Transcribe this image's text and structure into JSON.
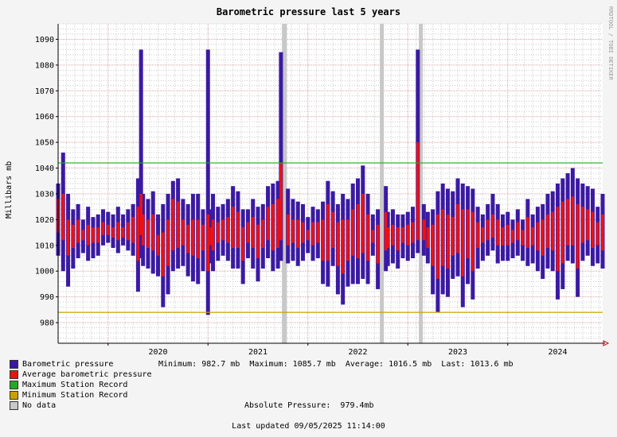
{
  "title": "Barometric pressure last 5 years",
  "side_text": "RRDTOOL / TOBI OETIKER",
  "stats": {
    "minimum_label": "Minimum:",
    "minimum": "982.7 mb",
    "maximum_label": "Maximum:",
    "maximum": "1085.7 mb",
    "average_label": "Average:",
    "average": "1016.5 mb",
    "last_label": "Last:",
    "last": "1013.6 mb"
  },
  "absolute_pressure_label": "Absolute Pressure:",
  "absolute_pressure": "979.4mb",
  "last_updated": "Last updated 09/05/2025 11:14:00",
  "legend": [
    {
      "label": "Barometric pressure",
      "color": "#3a1aa3"
    },
    {
      "label": "Average barometric pressure",
      "color": "#ee1111"
    },
    {
      "label": "Maximum Station Record",
      "color": "#22aa22"
    },
    {
      "label": "Minimum Station Record",
      "color": "#c8a000"
    },
    {
      "label": "No data",
      "color": "#c8c8c8"
    }
  ],
  "chart_data": {
    "type": "area",
    "title": "Barometric pressure last 5 years",
    "ylabel": "Millibars   mb",
    "ylim": [
      972,
      1096
    ],
    "yticks": [
      980,
      990,
      1000,
      1010,
      1020,
      1030,
      1040,
      1050,
      1060,
      1070,
      1080,
      1090
    ],
    "xlim": [
      2019.5,
      2024.95
    ],
    "xticks": [
      "2020",
      "2021",
      "2022",
      "2023",
      "2024"
    ],
    "grid": true,
    "max_station_record": 1042,
    "min_station_record": 984,
    "no_data_periods": [
      [
        2021.74,
        2021.79
      ],
      [
        2022.72,
        2022.76
      ],
      [
        2023.11,
        2023.15
      ]
    ],
    "series": [
      {
        "name": "Barometric pressure",
        "color": "#3a1aa3",
        "x": [
          2019.5,
          2019.55,
          2019.6,
          2019.65,
          2019.7,
          2019.75,
          2019.8,
          2019.85,
          2019.9,
          2019.95,
          2020.0,
          2020.05,
          2020.1,
          2020.15,
          2020.2,
          2020.25,
          2020.3,
          2020.33,
          2020.35,
          2020.4,
          2020.45,
          2020.5,
          2020.55,
          2020.6,
          2020.65,
          2020.7,
          2020.75,
          2020.8,
          2020.85,
          2020.9,
          2020.95,
          2021.0,
          2021.03,
          2021.05,
          2021.1,
          2021.15,
          2021.2,
          2021.25,
          2021.3,
          2021.35,
          2021.4,
          2021.45,
          2021.5,
          2021.55,
          2021.6,
          2021.65,
          2021.7,
          2021.73,
          2021.8,
          2021.85,
          2021.9,
          2021.95,
          2022.0,
          2022.05,
          2022.1,
          2022.15,
          2022.2,
          2022.25,
          2022.3,
          2022.35,
          2022.4,
          2022.45,
          2022.5,
          2022.55,
          2022.6,
          2022.65,
          2022.7,
          2022.78,
          2022.8,
          2022.85,
          2022.9,
          2022.95,
          2023.0,
          2023.05,
          2023.1,
          2023.16,
          2023.2,
          2023.25,
          2023.3,
          2023.35,
          2023.4,
          2023.45,
          2023.5,
          2023.55,
          2023.6,
          2023.65,
          2023.7,
          2023.75,
          2023.8,
          2023.85,
          2023.9,
          2023.95,
          2024.0,
          2024.05,
          2024.1,
          2024.15,
          2024.2,
          2024.25,
          2024.3,
          2024.35,
          2024.4,
          2024.45,
          2024.5,
          2024.55,
          2024.6,
          2024.65,
          2024.7,
          2024.75,
          2024.8,
          2024.85,
          2024.9,
          2024.95
        ],
        "high": [
          1034,
          1046,
          1030,
          1024,
          1026,
          1020,
          1025,
          1021,
          1022,
          1024,
          1023,
          1022,
          1025,
          1022,
          1024,
          1026,
          1036,
          1086,
          1030,
          1028,
          1031,
          1022,
          1026,
          1030,
          1035,
          1036,
          1028,
          1026,
          1030,
          1030,
          1024,
          1086,
          1024,
          1030,
          1025,
          1026,
          1028,
          1033,
          1031,
          1024,
          1024,
          1028,
          1025,
          1026,
          1033,
          1034,
          1035,
          1085,
          1032,
          1028,
          1027,
          1026,
          1021,
          1025,
          1024,
          1027,
          1035,
          1031,
          1026,
          1030,
          1028,
          1034,
          1036,
          1041,
          1030,
          1022,
          1024,
          1033,
          1023,
          1024,
          1022,
          1022,
          1023,
          1025,
          1086,
          1026,
          1023,
          1024,
          1031,
          1034,
          1032,
          1031,
          1036,
          1034,
          1033,
          1032,
          1025,
          1022,
          1026,
          1030,
          1026,
          1022,
          1023,
          1020,
          1024,
          1020,
          1028,
          1022,
          1025,
          1026,
          1030,
          1031,
          1034,
          1036,
          1038,
          1040,
          1036,
          1034,
          1033,
          1032,
          1025,
          1030
        ],
        "low": [
          1006,
          1000,
          994,
          1001,
          1005,
          1007,
          1004,
          1005,
          1006,
          1010,
          1011,
          1009,
          1007,
          1010,
          1008,
          1006,
          992,
          1005,
          1002,
          1001,
          999,
          998,
          986,
          991,
          1000,
          1001,
          1002,
          998,
          996,
          995,
          1000,
          983,
          1003,
          1000,
          1004,
          1006,
          1004,
          1001,
          1001,
          995,
          1005,
          1001,
          996,
          1001,
          1005,
          1000,
          1001,
          1004,
          1003,
          1004,
          1002,
          1004,
          1007,
          1004,
          1005,
          995,
          994,
          1002,
          991,
          987,
          994,
          995,
          995,
          997,
          995,
          1006,
          993,
          1000,
          1002,
          1003,
          1001,
          1005,
          1004,
          1005,
          1007,
          1006,
          1003,
          991,
          984,
          991,
          990,
          997,
          998,
          986,
          995,
          989,
          1001,
          1004,
          1006,
          1008,
          1003,
          1004,
          1004,
          1005,
          1006,
          1004,
          1002,
          1003,
          1000,
          997,
          1001,
          1000,
          989,
          993,
          1004,
          1003,
          990,
          1004,
          1006,
          1002,
          1003,
          1001
        ]
      },
      {
        "name": "Average barometric pressure",
        "color": "#ee1111",
        "x": [
          2019.5,
          2019.55,
          2019.6,
          2019.65,
          2019.7,
          2019.75,
          2019.8,
          2019.85,
          2019.9,
          2019.95,
          2020.0,
          2020.05,
          2020.1,
          2020.15,
          2020.2,
          2020.25,
          2020.3,
          2020.33,
          2020.35,
          2020.4,
          2020.45,
          2020.5,
          2020.55,
          2020.6,
          2020.65,
          2020.7,
          2020.75,
          2020.8,
          2020.85,
          2020.9,
          2020.95,
          2021.0,
          2021.03,
          2021.05,
          2021.1,
          2021.15,
          2021.2,
          2021.25,
          2021.3,
          2021.35,
          2021.4,
          2021.45,
          2021.5,
          2021.55,
          2021.6,
          2021.65,
          2021.7,
          2021.73,
          2021.8,
          2021.85,
          2021.9,
          2021.95,
          2022.0,
          2022.05,
          2022.1,
          2022.15,
          2022.2,
          2022.25,
          2022.3,
          2022.35,
          2022.4,
          2022.45,
          2022.5,
          2022.55,
          2022.6,
          2022.65,
          2022.7,
          2022.78,
          2022.8,
          2022.85,
          2022.9,
          2022.95,
          2023.0,
          2023.05,
          2023.1,
          2023.16,
          2023.2,
          2023.25,
          2023.3,
          2023.35,
          2023.4,
          2023.45,
          2023.5,
          2023.55,
          2023.6,
          2023.65,
          2023.7,
          2023.75,
          2023.8,
          2023.85,
          2023.9,
          2023.95,
          2024.0,
          2024.05,
          2024.1,
          2024.15,
          2024.2,
          2024.25,
          2024.3,
          2024.35,
          2024.4,
          2024.45,
          2024.5,
          2024.55,
          2024.6,
          2024.65,
          2024.7,
          2024.75,
          2024.8,
          2024.85,
          2024.9,
          2024.95
        ],
        "high": [
          1028,
          1030,
          1020,
          1018,
          1020,
          1016,
          1018,
          1017,
          1017,
          1019,
          1018,
          1017,
          1019,
          1017,
          1019,
          1021,
          1025,
          1030,
          1022,
          1020,
          1022,
          1014,
          1015,
          1020,
          1028,
          1027,
          1020,
          1018,
          1020,
          1020,
          1018,
          1022,
          1017,
          1020,
          1019,
          1020,
          1021,
          1025,
          1023,
          1017,
          1019,
          1021,
          1018,
          1020,
          1025,
          1026,
          1028,
          1042,
          1022,
          1020,
          1020,
          1019,
          1016,
          1019,
          1019,
          1020,
          1026,
          1023,
          1019,
          1020,
          1020,
          1024,
          1026,
          1030,
          1022,
          1016,
          1018,
          1023,
          1017,
          1018,
          1017,
          1017,
          1018,
          1019,
          1050,
          1020,
          1017,
          1018,
          1022,
          1024,
          1022,
          1021,
          1026,
          1024,
          1024,
          1023,
          1019,
          1017,
          1020,
          1022,
          1020,
          1017,
          1018,
          1016,
          1019,
          1016,
          1021,
          1017,
          1019,
          1020,
          1022,
          1023,
          1025,
          1027,
          1028,
          1029,
          1026,
          1025,
          1024,
          1023,
          1019,
          1022
        ],
        "low": [
          1015,
          1012,
          1006,
          1009,
          1011,
          1012,
          1010,
          1011,
          1011,
          1014,
          1014,
          1013,
          1012,
          1013,
          1012,
          1011,
          1004,
          1014,
          1010,
          1009,
          1008,
          1006,
          998,
          1002,
          1008,
          1009,
          1010,
          1007,
          1006,
          1005,
          1008,
          1000,
          1010,
          1008,
          1011,
          1012,
          1011,
          1009,
          1009,
          1004,
          1011,
          1009,
          1005,
          1009,
          1012,
          1008,
          1009,
          1012,
          1010,
          1011,
          1009,
          1011,
          1012,
          1010,
          1011,
          1004,
          1004,
          1009,
          1002,
          999,
          1004,
          1006,
          1005,
          1007,
          1004,
          1011,
          1003,
          1008,
          1009,
          1010,
          1008,
          1011,
          1010,
          1011,
          1012,
          1012,
          1009,
          1002,
          997,
          1002,
          1001,
          1006,
          1007,
          998,
          1005,
          1000,
          1009,
          1011,
          1012,
          1013,
          1010,
          1010,
          1010,
          1011,
          1012,
          1010,
          1009,
          1010,
          1008,
          1006,
          1009,
          1008,
          1000,
          1003,
          1010,
          1010,
          1001,
          1011,
          1012,
          1009,
          1010,
          1008
        ]
      }
    ]
  }
}
